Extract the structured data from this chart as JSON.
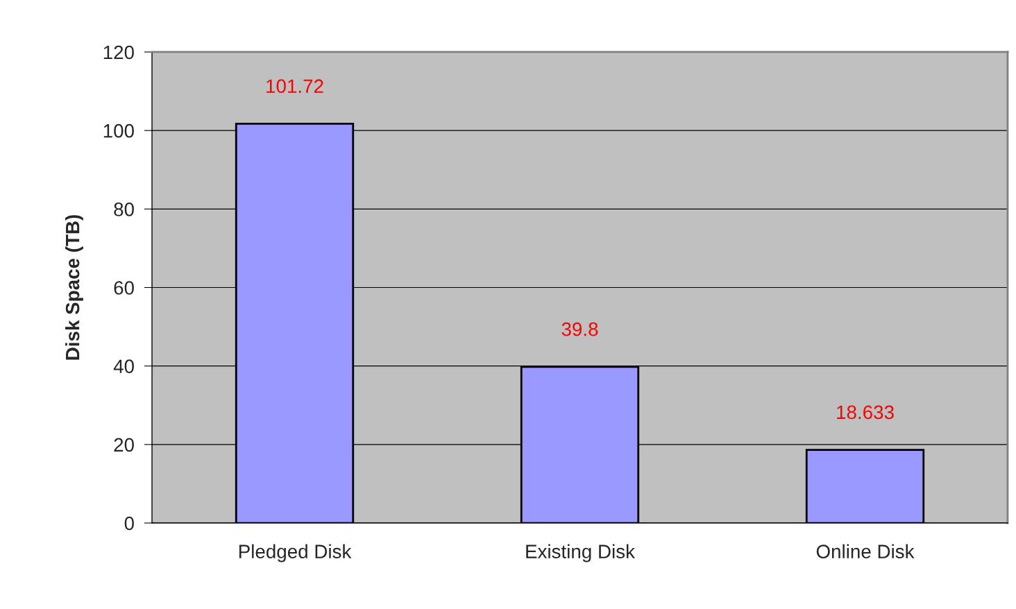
{
  "chart_data": {
    "type": "bar",
    "ylabel": "Disk Space (TB)",
    "categories": [
      "Pledged Disk",
      "Existing Disk",
      "Online Disk"
    ],
    "values": [
      101.72,
      39.8,
      18.633
    ],
    "color": "#9999ff",
    "ylim": [
      0,
      120
    ],
    "yticks": [
      0,
      20,
      40,
      60,
      80,
      100,
      120
    ],
    "grid": "y",
    "data_labels": true,
    "legend": false
  }
}
